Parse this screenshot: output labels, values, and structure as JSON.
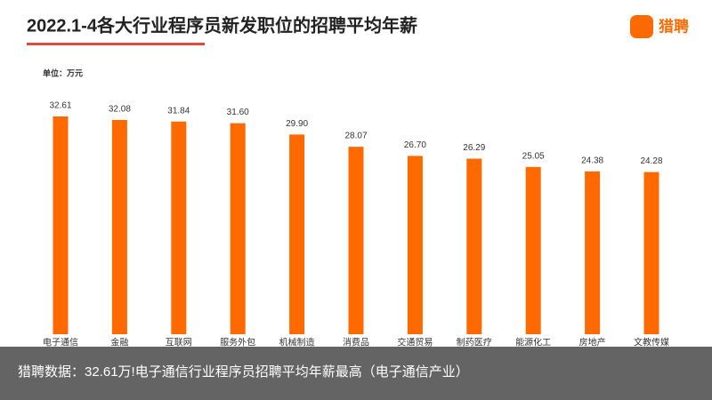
{
  "chart_data": {
    "type": "bar",
    "title": "2022.1-4各大行业程序员新发职位的招聘平均年薪",
    "unit": "单位：万元",
    "brand": "猎聘",
    "caption": "猎聘数据：32.61万!电子通信行业程序员招聘平均年薪最高（电子通信产业）",
    "categories": [
      "电子通信",
      "金融",
      "互联网",
      "服务外包",
      "机械制造",
      "消费品",
      "交通贸易",
      "制药医疗",
      "能源化工",
      "房地产",
      "文教传媒"
    ],
    "values": [
      32.61,
      32.08,
      31.84,
      31.6,
      29.9,
      28.07,
      26.7,
      26.29,
      25.05,
      24.38,
      24.28
    ],
    "value_labels": [
      "32.61",
      "32.08",
      "31.84",
      "31.60",
      "29.90",
      "28.07",
      "26.70",
      "26.29",
      "25.05",
      "24.38",
      "24.28"
    ],
    "color": "#ff6a00"
  }
}
